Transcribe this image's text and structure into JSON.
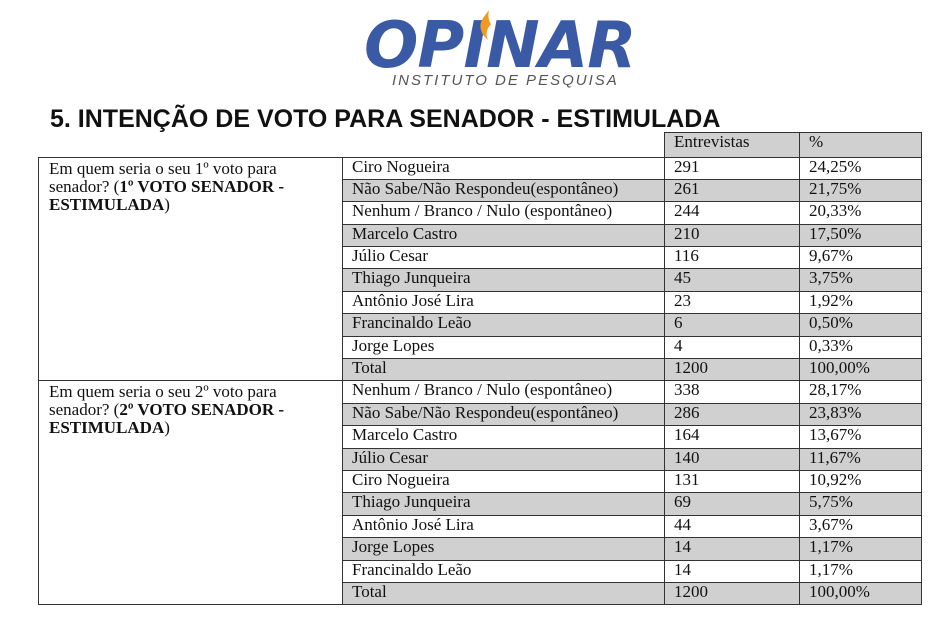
{
  "logo": {
    "name": "OPINAR",
    "tagline": "INSTITUTO DE PESQUISA",
    "color": "#3b5aa6"
  },
  "heading": "5. INTENÇÃO DE VOTO PARA SENADOR - ESTIMULADA",
  "table": {
    "col_entrevistas": "Entrevistas",
    "col_percent": "%",
    "sections": [
      {
        "question_pre": "Em quem seria o seu 1º voto para senador? (",
        "question_bold": "1º VOTO SENADOR - ESTIMULADA",
        "question_post": ")",
        "rows": [
          {
            "label": "Ciro Nogueira",
            "n": "291",
            "pct": "24,25%"
          },
          {
            "label": "Não Sabe/Não Respondeu(espontâneo)",
            "n": "261",
            "pct": "21,75%"
          },
          {
            "label": "Nenhum / Branco / Nulo (espontâneo)",
            "n": "244",
            "pct": "20,33%"
          },
          {
            "label": "Marcelo Castro",
            "n": "210",
            "pct": "17,50%"
          },
          {
            "label": "Júlio Cesar",
            "n": "116",
            "pct": "9,67%"
          },
          {
            "label": "Thiago Junqueira",
            "n": "45",
            "pct": "3,75%"
          },
          {
            "label": "Antônio José Lira",
            "n": "23",
            "pct": "1,92%"
          },
          {
            "label": "Francinaldo Leão",
            "n": "6",
            "pct": "0,50%"
          },
          {
            "label": "Jorge Lopes",
            "n": "4",
            "pct": "0,33%"
          },
          {
            "label": "Total",
            "n": "1200",
            "pct": "100,00%"
          }
        ]
      },
      {
        "question_pre": "Em quem seria o seu 2º voto para senador? (",
        "question_bold": "2º VOTO SENADOR - ESTIMULADA",
        "question_post": ")",
        "rows": [
          {
            "label": "Nenhum / Branco / Nulo (espontâneo)",
            "n": "338",
            "pct": "28,17%"
          },
          {
            "label": "Não Sabe/Não Respondeu(espontâneo)",
            "n": "286",
            "pct": "23,83%"
          },
          {
            "label": "Marcelo Castro",
            "n": "164",
            "pct": "13,67%"
          },
          {
            "label": "Júlio Cesar",
            "n": "140",
            "pct": "11,67%"
          },
          {
            "label": "Ciro Nogueira",
            "n": "131",
            "pct": "10,92%"
          },
          {
            "label": "Thiago Junqueira",
            "n": "69",
            "pct": "5,75%"
          },
          {
            "label": "Antônio José Lira",
            "n": "44",
            "pct": "3,67%"
          },
          {
            "label": "Jorge Lopes",
            "n": "14",
            "pct": "1,17%"
          },
          {
            "label": "Francinaldo Leão",
            "n": "14",
            "pct": "1,17%"
          },
          {
            "label": "Total",
            "n": "1200",
            "pct": "100,00%"
          }
        ]
      }
    ]
  }
}
